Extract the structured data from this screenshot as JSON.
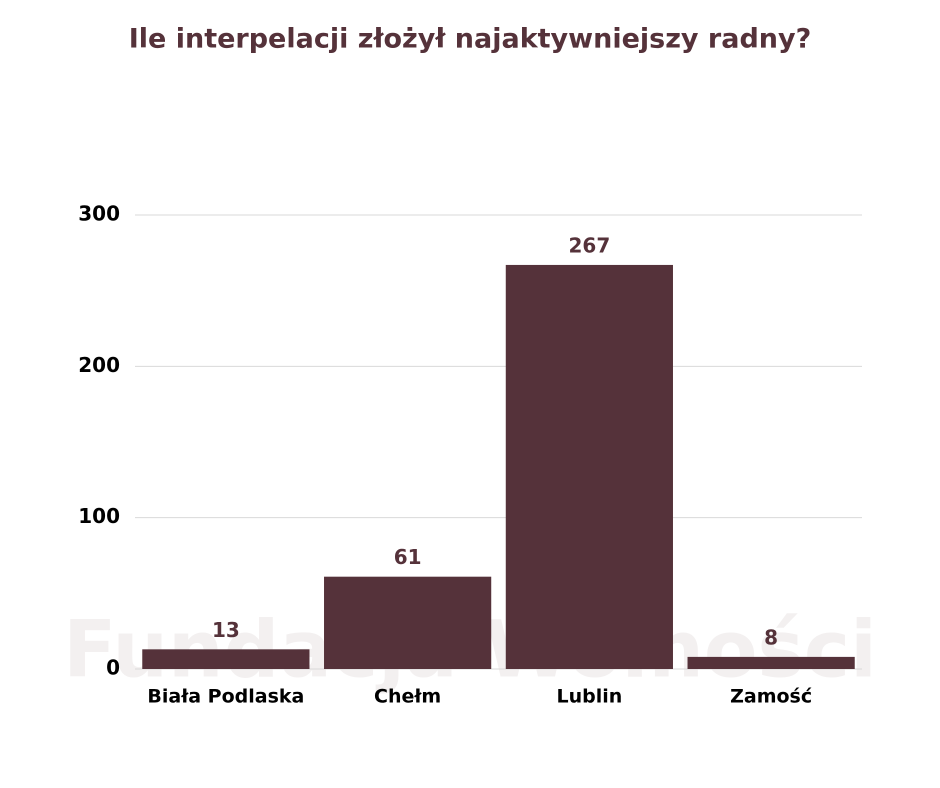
{
  "chart_data": {
    "type": "bar",
    "title": "Ile interpelacji złożył najaktywniejszy radny?",
    "watermark": "Fundacja Wolności",
    "categories": [
      "Biała Podlaska",
      "Chełm",
      "Lublin",
      "Zamość"
    ],
    "values": [
      13,
      61,
      267,
      8
    ],
    "color": "#55323a",
    "ylim": [
      0,
      300
    ],
    "yticks": [
      0,
      100,
      200,
      300
    ],
    "grid": true
  }
}
